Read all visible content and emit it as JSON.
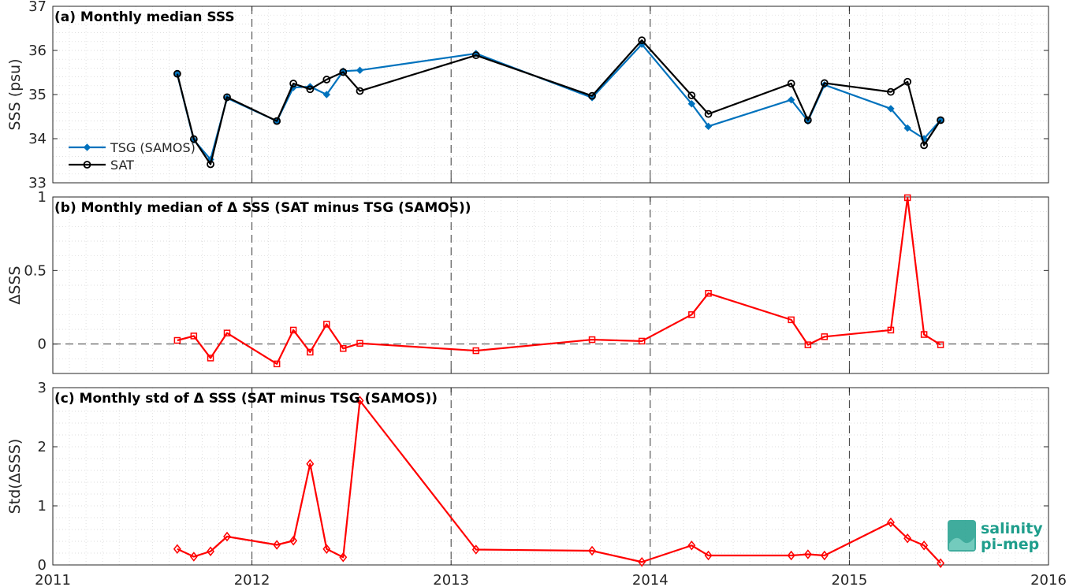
{
  "chart_data": [
    {
      "type": "line",
      "title": "(a) Monthly median SSS",
      "xlabel": "",
      "ylabel": "SSS (psu)",
      "xlim": [
        2011,
        2016
      ],
      "ylim": [
        33,
        37
      ],
      "y_ticks": [
        33,
        34,
        35,
        36,
        37
      ],
      "y_tick_labels": [
        "33",
        "34",
        "35",
        "36",
        "37"
      ],
      "grid": true,
      "legend": "left",
      "series": [
        {
          "name": "TSG (SAMOS)",
          "color": "#0072BD",
          "marker": "diamond-filled",
          "x": [
            2011.625,
            2011.708,
            2011.792,
            2011.875,
            2012.125,
            2012.208,
            2012.292,
            2012.375,
            2012.458,
            2012.542,
            2013.125,
            2013.708,
            2013.958,
            2014.208,
            2014.292,
            2014.708,
            2014.792,
            2014.875,
            2015.208,
            2015.292,
            2015.375,
            2015.458
          ],
          "values": [
            35.46,
            33.97,
            33.53,
            34.92,
            34.4,
            35.16,
            35.18,
            35.0,
            35.53,
            35.55,
            35.93,
            34.93,
            36.14,
            34.79,
            34.28,
            34.88,
            34.4,
            35.22,
            34.68,
            34.24,
            34.0,
            34.42
          ]
        },
        {
          "name": "SAT",
          "color": "#000000",
          "marker": "circle-open",
          "x": [
            2011.625,
            2011.708,
            2011.792,
            2011.875,
            2012.125,
            2012.208,
            2012.292,
            2012.375,
            2012.458,
            2012.542,
            2013.125,
            2013.708,
            2013.958,
            2014.208,
            2014.292,
            2014.708,
            2014.792,
            2014.875,
            2015.208,
            2015.292,
            2015.375,
            2015.458
          ],
          "values": [
            35.47,
            33.99,
            33.42,
            34.94,
            34.4,
            35.25,
            35.12,
            35.34,
            35.51,
            35.08,
            35.89,
            34.97,
            36.23,
            34.98,
            34.56,
            35.25,
            34.42,
            35.26,
            35.06,
            35.29,
            33.85,
            34.42
          ]
        }
      ]
    },
    {
      "type": "line",
      "title": "(b) Monthly median of Δ SSS (SAT minus TSG (SAMOS))",
      "xlabel": "",
      "ylabel": "ΔSSS",
      "xlim": [
        2011,
        2016
      ],
      "ylim": [
        -0.2,
        1
      ],
      "y_ticks": [
        0,
        0.5,
        1
      ],
      "y_tick_labels": [
        "0",
        "0.5",
        "1"
      ],
      "grid": true,
      "zero_line": true,
      "series": [
        {
          "name": "",
          "color": "#FF0000",
          "marker": "square-open",
          "x": [
            2011.625,
            2011.708,
            2011.792,
            2011.875,
            2012.125,
            2012.208,
            2012.292,
            2012.375,
            2012.458,
            2012.542,
            2013.125,
            2013.708,
            2013.958,
            2014.208,
            2014.292,
            2014.708,
            2014.792,
            2014.875,
            2015.208,
            2015.292,
            2015.375,
            2015.458
          ],
          "values": [
            0.025,
            0.055,
            -0.095,
            0.075,
            -0.135,
            0.095,
            -0.055,
            0.135,
            -0.03,
            0.005,
            -0.045,
            0.03,
            0.02,
            0.2,
            0.345,
            0.165,
            -0.005,
            0.05,
            0.095,
            0.995,
            0.065,
            -0.005
          ]
        }
      ]
    },
    {
      "type": "line",
      "title": "(c) Monthly std of Δ SSS (SAT minus TSG (SAMOS))",
      "xlabel": "",
      "ylabel": "Std(ΔSSS)",
      "xlim": [
        2011,
        2016
      ],
      "ylim": [
        0,
        3
      ],
      "y_ticks": [
        0,
        1,
        2,
        3
      ],
      "y_tick_labels": [
        "0",
        "1",
        "2",
        "3"
      ],
      "x_ticks": [
        2011,
        2012,
        2013,
        2014,
        2015,
        2016
      ],
      "x_tick_labels": [
        "2011",
        "2012",
        "2013",
        "2014",
        "2015",
        "2016"
      ],
      "grid": true,
      "series": [
        {
          "name": "",
          "color": "#FF0000",
          "marker": "diamond-open",
          "x": [
            2011.625,
            2011.708,
            2011.792,
            2011.875,
            2012.125,
            2012.208,
            2012.292,
            2012.375,
            2012.458,
            2012.542,
            2013.125,
            2013.708,
            2013.958,
            2014.208,
            2014.292,
            2014.708,
            2014.792,
            2014.875,
            2015.208,
            2015.292,
            2015.375,
            2015.458
          ],
          "values": [
            0.27,
            0.14,
            0.23,
            0.48,
            0.34,
            0.41,
            1.71,
            0.27,
            0.13,
            2.78,
            0.26,
            0.24,
            0.05,
            0.33,
            0.16,
            0.16,
            0.18,
            0.16,
            0.72,
            0.45,
            0.33,
            0.03
          ]
        }
      ]
    }
  ],
  "logo": {
    "line1": "salinity",
    "line2": "pi-mep",
    "color": "#1F9E8C"
  }
}
